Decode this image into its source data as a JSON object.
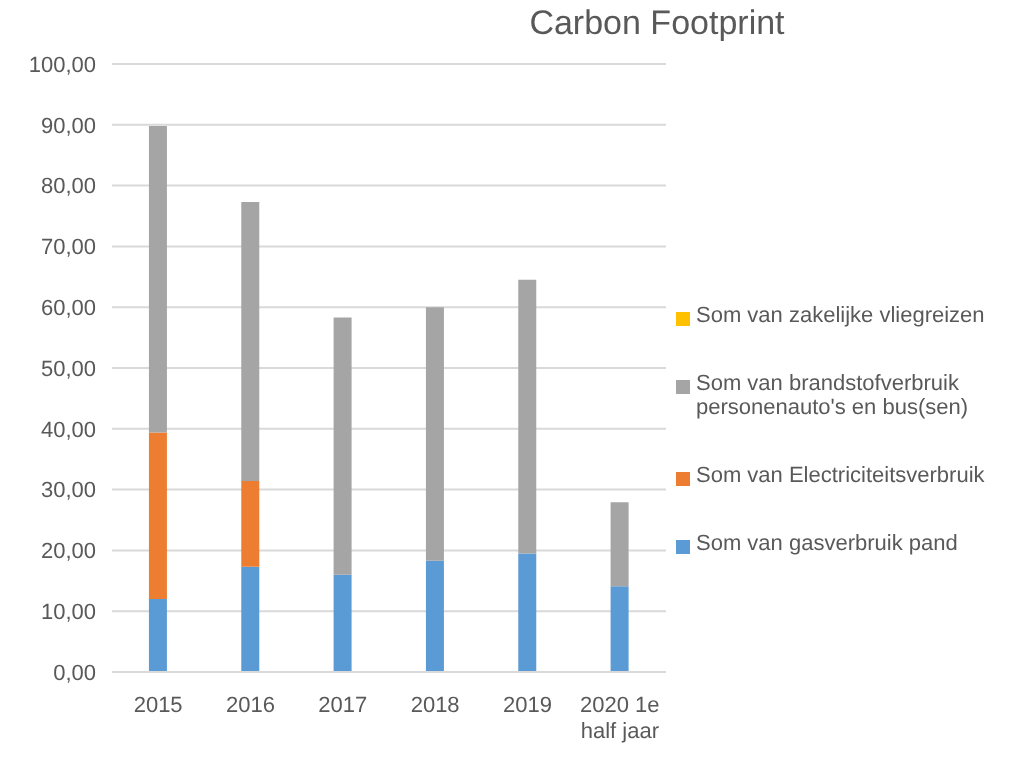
{
  "chart_data": {
    "type": "bar",
    "title": "Carbon Footprint",
    "stacked": true,
    "categories": [
      "2015",
      "2016",
      "2017",
      "2018",
      "2019",
      "2020 1e half jaar"
    ],
    "series": [
      {
        "name": "Som van gasverbruik pand",
        "color": "#5b9bd5",
        "values": [
          12.0,
          17.3,
          16.0,
          18.3,
          19.5,
          14.1
        ]
      },
      {
        "name": "Som van Electriciteitsverbruik",
        "color": "#ed7d31",
        "values": [
          27.4,
          14.1,
          null,
          null,
          null,
          null
        ]
      },
      {
        "name": "Som van brandstofverbruik personenauto's en bus(sen)",
        "color": "#a5a5a5",
        "values": [
          50.4,
          45.9,
          42.3,
          41.7,
          45.0,
          13.8
        ]
      },
      {
        "name": "Som van zakelijke vliegreizen",
        "color": "#ffc000",
        "values": [
          null,
          null,
          null,
          null,
          null,
          null
        ]
      }
    ],
    "ylim": [
      0,
      100
    ],
    "yticks": [
      {
        "value": 0,
        "label": "0,00"
      },
      {
        "value": 10,
        "label": "10,00"
      },
      {
        "value": 20,
        "label": "20,00"
      },
      {
        "value": 30,
        "label": "30,00"
      },
      {
        "value": 40,
        "label": "40,00"
      },
      {
        "value": 50,
        "label": "50,00"
      },
      {
        "value": 60,
        "label": "60,00"
      },
      {
        "value": 70,
        "label": "70,00"
      },
      {
        "value": 80,
        "label": "80,00"
      },
      {
        "value": 90,
        "label": "90,00"
      },
      {
        "value": 100,
        "label": "100,00"
      }
    ],
    "grid": "y",
    "legend": "right"
  }
}
